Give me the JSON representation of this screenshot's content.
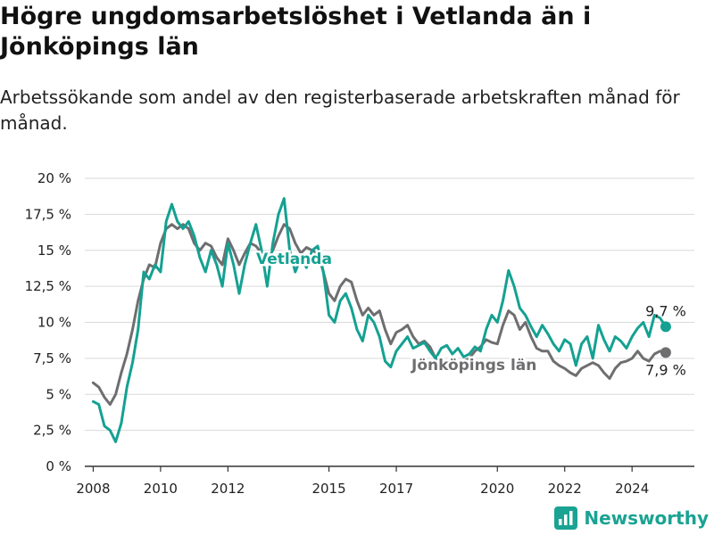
{
  "title": "Högre ungdomsarbetslöshet i Vetlanda än i Jönköpings län",
  "subtitle": "Arbetssökande som andel av den registerbaserade arbetskraften månad för månad.",
  "logo_text": "Newsworthy",
  "colors": {
    "vetlanda": "#14a192",
    "lan": "#6e6e70",
    "grid": "#d9d9d9",
    "axis": "#333333",
    "logo": "#1aa393"
  },
  "chart_data": {
    "type": "line",
    "title": "Högre ungdomsarbetslöshet i Vetlanda än i Jönköpings län",
    "subtitle": "Arbetssökande som andel av den registerbaserade arbetskraften månad för månad.",
    "xlabel": "",
    "ylabel": "",
    "x_ticks": [
      "2008",
      "2010",
      "2012",
      "2015",
      "2017",
      "2020",
      "2022",
      "2024"
    ],
    "y_ticks": [
      "0 %",
      "2,5 %",
      "5 %",
      "7,5 %",
      "10 %",
      "12,5 %",
      "15 %",
      "17,5 %",
      "20 %"
    ],
    "ylim": [
      0,
      20
    ],
    "grid": "horizontal",
    "legend": "inline labels",
    "series": [
      {
        "name": "Vetlanda",
        "color": "#14a192",
        "end_label": "9,7 %",
        "points": [
          [
            "2008-01",
            4.5
          ],
          [
            "2008-03",
            4.3
          ],
          [
            "2008-05",
            2.8
          ],
          [
            "2008-07",
            2.5
          ],
          [
            "2008-09",
            1.7
          ],
          [
            "2008-11",
            3.0
          ],
          [
            "2009-01",
            5.5
          ],
          [
            "2009-03",
            7.2
          ],
          [
            "2009-05",
            9.5
          ],
          [
            "2009-07",
            13.5
          ],
          [
            "2009-09",
            13.0
          ],
          [
            "2009-11",
            14.0
          ],
          [
            "2010-01",
            13.5
          ],
          [
            "2010-03",
            17.0
          ],
          [
            "2010-05",
            18.2
          ],
          [
            "2010-07",
            17.0
          ],
          [
            "2010-09",
            16.5
          ],
          [
            "2010-11",
            17.0
          ],
          [
            "2011-01",
            16.0
          ],
          [
            "2011-03",
            14.5
          ],
          [
            "2011-05",
            13.5
          ],
          [
            "2011-07",
            15.0
          ],
          [
            "2011-09",
            14.0
          ],
          [
            "2011-11",
            12.5
          ],
          [
            "2012-01",
            15.5
          ],
          [
            "2012-03",
            14.0
          ],
          [
            "2012-05",
            12.0
          ],
          [
            "2012-07",
            14.0
          ],
          [
            "2012-09",
            15.5
          ],
          [
            "2012-11",
            16.8
          ],
          [
            "2013-01",
            15.0
          ],
          [
            "2013-03",
            12.5
          ],
          [
            "2013-05",
            15.5
          ],
          [
            "2013-07",
            17.5
          ],
          [
            "2013-09",
            18.6
          ],
          [
            "2013-11",
            15.0
          ],
          [
            "2014-01",
            13.5
          ],
          [
            "2014-03",
            14.5
          ],
          [
            "2014-05",
            13.8
          ],
          [
            "2014-07",
            15.0
          ],
          [
            "2014-09",
            15.3
          ],
          [
            "2014-11",
            13.5
          ],
          [
            "2015-01",
            10.5
          ],
          [
            "2015-03",
            10.0
          ],
          [
            "2015-05",
            11.5
          ],
          [
            "2015-07",
            12.0
          ],
          [
            "2015-09",
            11.0
          ],
          [
            "2015-11",
            9.5
          ],
          [
            "2016-01",
            8.7
          ],
          [
            "2016-03",
            10.5
          ],
          [
            "2016-05",
            10.0
          ],
          [
            "2016-07",
            9.0
          ],
          [
            "2016-09",
            7.3
          ],
          [
            "2016-11",
            6.9
          ],
          [
            "2017-01",
            8.0
          ],
          [
            "2017-03",
            8.5
          ],
          [
            "2017-05",
            9.0
          ],
          [
            "2017-07",
            8.2
          ],
          [
            "2017-09",
            8.4
          ],
          [
            "2017-11",
            8.6
          ],
          [
            "2018-01",
            8.0
          ],
          [
            "2018-03",
            7.5
          ],
          [
            "2018-05",
            8.2
          ],
          [
            "2018-07",
            8.4
          ],
          [
            "2018-09",
            7.8
          ],
          [
            "2018-11",
            8.2
          ],
          [
            "2019-01",
            7.6
          ],
          [
            "2019-03",
            7.8
          ],
          [
            "2019-05",
            8.3
          ],
          [
            "2019-07",
            8.0
          ],
          [
            "2019-09",
            9.5
          ],
          [
            "2019-11",
            10.5
          ],
          [
            "2020-01",
            10.0
          ],
          [
            "2020-03",
            11.5
          ],
          [
            "2020-05",
            13.6
          ],
          [
            "2020-07",
            12.5
          ],
          [
            "2020-09",
            11.0
          ],
          [
            "2020-11",
            10.5
          ],
          [
            "2021-01",
            9.7
          ],
          [
            "2021-03",
            9.0
          ],
          [
            "2021-05",
            9.8
          ],
          [
            "2021-07",
            9.2
          ],
          [
            "2021-09",
            8.5
          ],
          [
            "2021-11",
            8.0
          ],
          [
            "2022-01",
            8.8
          ],
          [
            "2022-03",
            8.5
          ],
          [
            "2022-05",
            7.0
          ],
          [
            "2022-07",
            8.5
          ],
          [
            "2022-09",
            9.0
          ],
          [
            "2022-11",
            7.5
          ],
          [
            "2023-01",
            9.8
          ],
          [
            "2023-03",
            8.8
          ],
          [
            "2023-05",
            8.0
          ],
          [
            "2023-07",
            9.0
          ],
          [
            "2023-09",
            8.7
          ],
          [
            "2023-11",
            8.2
          ],
          [
            "2024-01",
            9.0
          ],
          [
            "2024-03",
            9.6
          ],
          [
            "2024-05",
            10.0
          ],
          [
            "2024-07",
            9.0
          ],
          [
            "2024-09",
            10.5
          ],
          [
            "2024-11",
            10.3
          ],
          [
            "2025-01",
            9.7
          ]
        ]
      },
      {
        "name": "Jönköpings län",
        "color": "#6e6e70",
        "end_label": "7,9 %",
        "points": [
          [
            "2008-01",
            5.8
          ],
          [
            "2008-03",
            5.5
          ],
          [
            "2008-05",
            4.8
          ],
          [
            "2008-07",
            4.3
          ],
          [
            "2008-09",
            5.0
          ],
          [
            "2008-11",
            6.5
          ],
          [
            "2009-01",
            7.8
          ],
          [
            "2009-03",
            9.5
          ],
          [
            "2009-05",
            11.5
          ],
          [
            "2009-07",
            13.0
          ],
          [
            "2009-09",
            14.0
          ],
          [
            "2009-11",
            13.8
          ],
          [
            "2010-01",
            15.5
          ],
          [
            "2010-03",
            16.5
          ],
          [
            "2010-05",
            16.8
          ],
          [
            "2010-07",
            16.5
          ],
          [
            "2010-09",
            16.8
          ],
          [
            "2010-11",
            16.5
          ],
          [
            "2011-01",
            15.5
          ],
          [
            "2011-03",
            15.0
          ],
          [
            "2011-05",
            15.5
          ],
          [
            "2011-07",
            15.3
          ],
          [
            "2011-09",
            14.5
          ],
          [
            "2011-11",
            14.0
          ],
          [
            "2012-01",
            15.8
          ],
          [
            "2012-03",
            15.0
          ],
          [
            "2012-05",
            14.0
          ],
          [
            "2012-07",
            14.8
          ],
          [
            "2012-09",
            15.5
          ],
          [
            "2012-11",
            15.3
          ],
          [
            "2013-01",
            14.8
          ],
          [
            "2013-03",
            14.5
          ],
          [
            "2013-05",
            15.0
          ],
          [
            "2013-07",
            16.0
          ],
          [
            "2013-09",
            16.8
          ],
          [
            "2013-11",
            16.5
          ],
          [
            "2014-01",
            15.5
          ],
          [
            "2014-03",
            14.8
          ],
          [
            "2014-05",
            15.2
          ],
          [
            "2014-07",
            15.0
          ],
          [
            "2014-09",
            14.8
          ],
          [
            "2014-11",
            13.5
          ],
          [
            "2015-01",
            12.0
          ],
          [
            "2015-03",
            11.5
          ],
          [
            "2015-05",
            12.5
          ],
          [
            "2015-07",
            13.0
          ],
          [
            "2015-09",
            12.8
          ],
          [
            "2015-11",
            11.5
          ],
          [
            "2016-01",
            10.5
          ],
          [
            "2016-03",
            11.0
          ],
          [
            "2016-05",
            10.5
          ],
          [
            "2016-07",
            10.8
          ],
          [
            "2016-09",
            9.5
          ],
          [
            "2016-11",
            8.5
          ],
          [
            "2017-01",
            9.3
          ],
          [
            "2017-03",
            9.5
          ],
          [
            "2017-05",
            9.8
          ],
          [
            "2017-07",
            9.0
          ],
          [
            "2017-09",
            8.5
          ],
          [
            "2017-11",
            8.7
          ],
          [
            "2018-01",
            8.3
          ],
          [
            "2018-03",
            7.5
          ],
          [
            "2018-05",
            6.8
          ],
          [
            "2018-07",
            7.0
          ],
          [
            "2018-09",
            6.9
          ],
          [
            "2018-11",
            7.0
          ],
          [
            "2019-01",
            7.3
          ],
          [
            "2019-03",
            7.5
          ],
          [
            "2019-05",
            8.0
          ],
          [
            "2019-07",
            8.3
          ],
          [
            "2019-09",
            8.8
          ],
          [
            "2019-11",
            8.6
          ],
          [
            "2020-01",
            8.5
          ],
          [
            "2020-03",
            9.8
          ],
          [
            "2020-05",
            10.8
          ],
          [
            "2020-07",
            10.5
          ],
          [
            "2020-09",
            9.5
          ],
          [
            "2020-11",
            10.0
          ],
          [
            "2021-01",
            9.0
          ],
          [
            "2021-03",
            8.2
          ],
          [
            "2021-05",
            8.0
          ],
          [
            "2021-07",
            8.0
          ],
          [
            "2021-09",
            7.3
          ],
          [
            "2021-11",
            7.0
          ],
          [
            "2022-01",
            6.8
          ],
          [
            "2022-03",
            6.5
          ],
          [
            "2022-05",
            6.3
          ],
          [
            "2022-07",
            6.8
          ],
          [
            "2022-09",
            7.0
          ],
          [
            "2022-11",
            7.2
          ],
          [
            "2023-01",
            7.0
          ],
          [
            "2023-03",
            6.5
          ],
          [
            "2023-05",
            6.1
          ],
          [
            "2023-07",
            6.8
          ],
          [
            "2023-09",
            7.2
          ],
          [
            "2023-11",
            7.3
          ],
          [
            "2024-01",
            7.5
          ],
          [
            "2024-03",
            8.0
          ],
          [
            "2024-05",
            7.5
          ],
          [
            "2024-07",
            7.3
          ],
          [
            "2024-09",
            7.8
          ],
          [
            "2024-11",
            8.0
          ],
          [
            "2025-01",
            7.9
          ]
        ]
      }
    ]
  }
}
